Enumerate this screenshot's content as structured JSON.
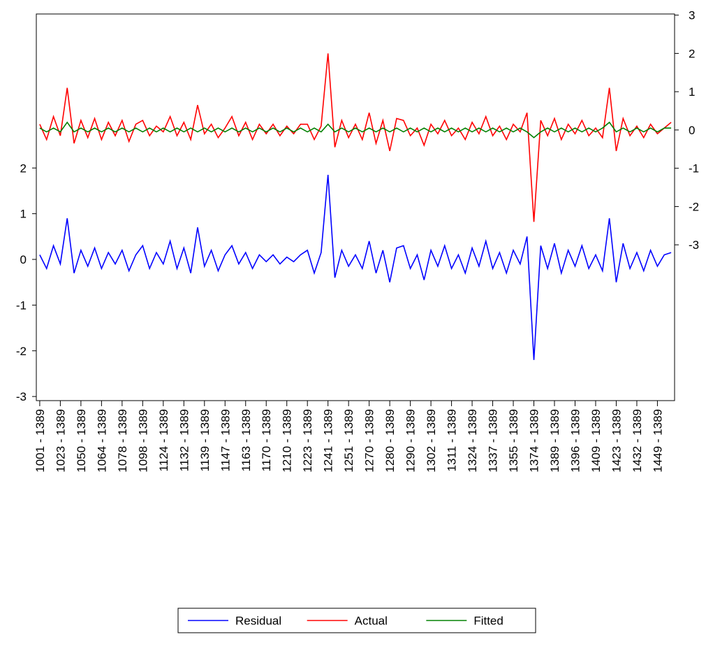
{
  "chart_data": {
    "type": "line",
    "categories": [
      "1001 - 1389",
      null,
      null,
      "1023 - 1389",
      null,
      null,
      "1050 - 1389",
      null,
      null,
      "1064 - 1389",
      null,
      null,
      "1078 - 1389",
      null,
      null,
      "1098 - 1389",
      null,
      null,
      "1124 - 1389",
      null,
      null,
      "1132 - 1389",
      null,
      null,
      "1139 - 1389",
      null,
      null,
      "1147 - 1389",
      null,
      null,
      "1163 - 1389",
      null,
      null,
      "1170 - 1389",
      null,
      null,
      "1210 - 1389",
      null,
      null,
      "1223 - 1389",
      null,
      null,
      "1241 - 1389",
      null,
      null,
      "1251 - 1389",
      null,
      null,
      "1270 - 1389",
      null,
      null,
      "1280 - 1389",
      null,
      null,
      "1290 - 1389",
      null,
      null,
      "1302 - 1389",
      null,
      null,
      "1311 - 1389",
      null,
      null,
      "1324 - 1389",
      null,
      null,
      "1337 - 1389",
      null,
      null,
      "1355 - 1389",
      null,
      null,
      "1374 - 1389",
      null,
      null,
      "1389 - 1389",
      null,
      null,
      "1396 - 1389",
      null,
      null,
      "1409 - 1389",
      null,
      null,
      "1423 - 1389",
      null,
      null,
      "1432 - 1389",
      null,
      null,
      "1449 - 1389",
      null,
      null
    ],
    "series": [
      {
        "name": "Residual",
        "color": "#0000ff",
        "values": [
          0.1,
          -0.2,
          0.3,
          -0.1,
          0.9,
          -0.3,
          0.2,
          -0.15,
          0.25,
          -0.2,
          0.15,
          -0.1,
          0.2,
          -0.25,
          0.1,
          0.3,
          -0.2,
          0.15,
          -0.1,
          0.4,
          -0.2,
          0.25,
          -0.3,
          0.7,
          -0.15,
          0.2,
          -0.25,
          0.1,
          0.3,
          -0.1,
          0.15,
          -0.2,
          0.1,
          -0.05,
          0.1,
          -0.1,
          0.05,
          -0.05,
          0.1,
          0.2,
          -0.3,
          0.15,
          1.85,
          -0.4,
          0.2,
          -0.15,
          0.1,
          -0.2,
          0.4,
          -0.3,
          0.2,
          -0.5,
          0.25,
          0.3,
          -0.2,
          0.1,
          -0.45,
          0.2,
          -0.15,
          0.3,
          -0.2,
          0.1,
          -0.3,
          0.25,
          -0.15,
          0.4,
          -0.2,
          0.15,
          -0.3,
          0.2,
          -0.1,
          0.5,
          -2.2,
          0.3,
          -0.2,
          0.35,
          -0.3,
          0.2,
          -0.15,
          0.3,
          -0.2,
          0.1,
          -0.25,
          0.9,
          -0.5,
          0.35,
          -0.2,
          0.15,
          -0.25,
          0.2,
          -0.15,
          0.1,
          0.15
        ]
      },
      {
        "name": "Actual",
        "color": "#ff0000",
        "axis": "y2",
        "values": [
          0.15,
          -0.25,
          0.35,
          -0.15,
          1.1,
          -0.35,
          0.25,
          -0.2,
          0.3,
          -0.25,
          0.2,
          -0.15,
          0.25,
          -0.3,
          0.15,
          0.25,
          -0.15,
          0.1,
          -0.05,
          0.35,
          -0.15,
          0.2,
          -0.25,
          0.65,
          -0.1,
          0.15,
          -0.2,
          0.05,
          0.35,
          -0.15,
          0.2,
          -0.25,
          0.15,
          -0.1,
          0.15,
          -0.15,
          0.1,
          -0.1,
          0.15,
          0.15,
          -0.25,
          0.1,
          2.0,
          -0.45,
          0.25,
          -0.2,
          0.15,
          -0.25,
          0.45,
          -0.35,
          0.25,
          -0.55,
          0.3,
          0.25,
          -0.15,
          0.05,
          -0.4,
          0.15,
          -0.1,
          0.25,
          -0.15,
          0.05,
          -0.25,
          0.2,
          -0.1,
          0.35,
          -0.15,
          0.1,
          -0.25,
          0.15,
          -0.05,
          0.45,
          -2.4,
          0.25,
          -0.15,
          0.3,
          -0.25,
          0.15,
          -0.1,
          0.25,
          -0.15,
          0.05,
          -0.2,
          1.1,
          -0.55,
          0.3,
          -0.15,
          0.1,
          -0.2,
          0.15,
          -0.1,
          0.05,
          0.2
        ]
      },
      {
        "name": "Fitted",
        "color": "#008000",
        "axis": "y2",
        "values": [
          0.05,
          -0.05,
          0.05,
          -0.05,
          0.2,
          -0.05,
          0.05,
          -0.05,
          0.05,
          -0.05,
          0.05,
          -0.05,
          0.05,
          -0.05,
          0.05,
          -0.05,
          0.05,
          -0.05,
          0.05,
          -0.05,
          0.05,
          -0.05,
          0.05,
          -0.05,
          0.05,
          -0.05,
          0.05,
          -0.05,
          0.05,
          -0.05,
          0.05,
          -0.05,
          0.05,
          -0.05,
          0.05,
          -0.05,
          0.05,
          -0.05,
          0.05,
          -0.05,
          0.05,
          -0.05,
          0.15,
          -0.05,
          0.05,
          -0.05,
          0.05,
          -0.05,
          0.05,
          -0.05,
          0.05,
          -0.05,
          0.05,
          -0.05,
          0.05,
          -0.05,
          0.05,
          -0.05,
          0.05,
          -0.05,
          0.05,
          -0.05,
          0.05,
          -0.05,
          0.05,
          -0.05,
          0.05,
          -0.05,
          0.05,
          -0.05,
          0.05,
          -0.05,
          -0.2,
          -0.05,
          0.05,
          -0.05,
          0.05,
          -0.05,
          0.05,
          -0.05,
          0.05,
          -0.05,
          0.05,
          0.2,
          -0.05,
          0.05,
          -0.05,
          0.05,
          -0.05,
          0.05,
          -0.05,
          0.05,
          0.05
        ]
      }
    ],
    "ylim": [
      -3.09,
      5.37
    ],
    "yticks": [
      -3,
      -2,
      -1,
      0,
      1,
      2
    ],
    "y2lim": [
      -7.07,
      3.03
    ],
    "y2ticks": [
      -3,
      -2,
      -1,
      0,
      1,
      2,
      3
    ]
  }
}
